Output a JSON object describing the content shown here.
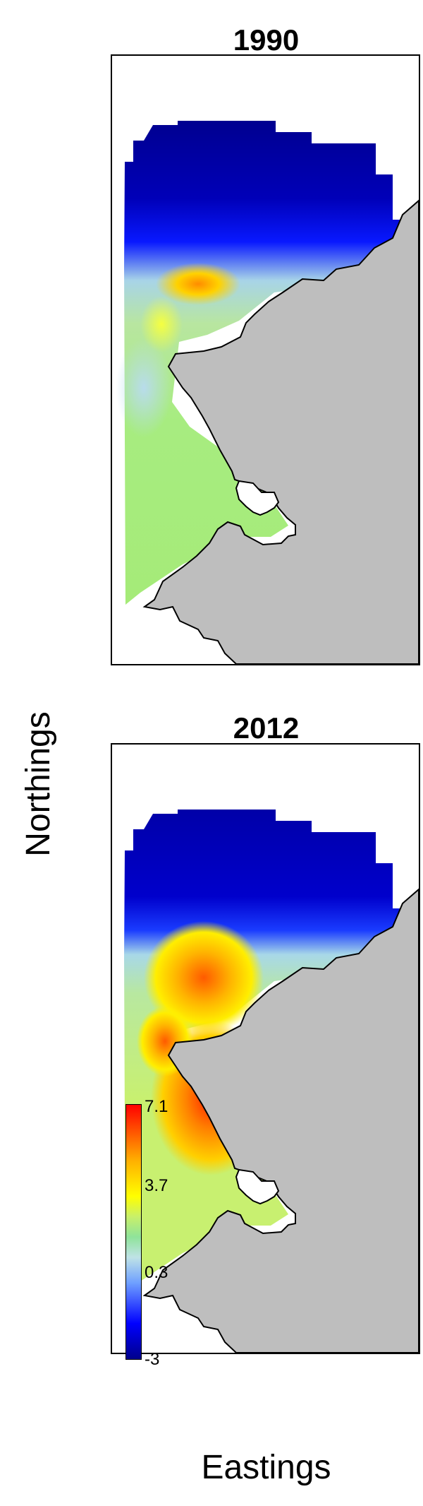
{
  "panels": [
    {
      "title": "1990"
    },
    {
      "title": "2012"
    }
  ],
  "axes": {
    "xlabel": "Eastings",
    "ylabel": "Northings"
  },
  "legend": {
    "labels": [
      "7.1",
      "3.7",
      "0.3",
      "-3"
    ],
    "scale_min": -3,
    "scale_max": 7.1,
    "colors": [
      "#00008b",
      "#0000ff",
      "#bfe3e6",
      "#c8f06a",
      "#ffff00",
      "#ff0000"
    ]
  },
  "colors": {
    "land": "#bebebe",
    "coastline": "#000000"
  }
}
